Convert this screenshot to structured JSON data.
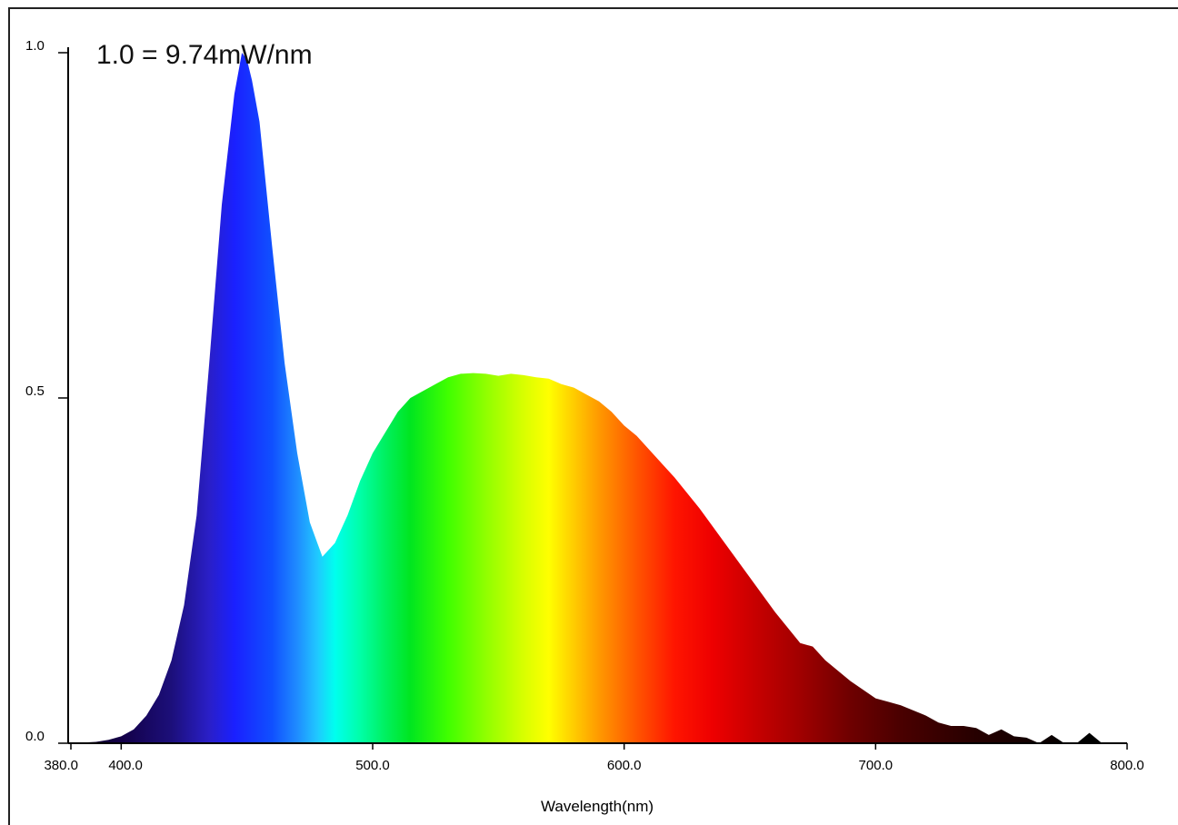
{
  "chart_data": {
    "type": "area",
    "annotation": "1.0 = 9.74mW/nm",
    "xlabel": "Wavelength(nm)",
    "ylabel": "",
    "xlim": [
      380.0,
      800.0
    ],
    "ylim": [
      0.0,
      1.0
    ],
    "x_ticks": [
      {
        "value": 380.0,
        "label": "380.0"
      },
      {
        "value": 400.0,
        "label": "400.0"
      },
      {
        "value": 500.0,
        "label": "500.0"
      },
      {
        "value": 600.0,
        "label": "600.0"
      },
      {
        "value": 700.0,
        "label": "700.0"
      },
      {
        "value": 800.0,
        "label": "800.0"
      }
    ],
    "y_ticks": [
      {
        "value": 0.0,
        "label": "0.0"
      },
      {
        "value": 0.5,
        "label": "0.5"
      },
      {
        "value": 1.0,
        "label": "1.0"
      }
    ],
    "grid": false,
    "fill": "visible-spectrum colors",
    "x": [
      380,
      390,
      395,
      400,
      405,
      410,
      415,
      420,
      425,
      430,
      435,
      440,
      445,
      448,
      450,
      452,
      455,
      460,
      465,
      470,
      475,
      478,
      480,
      485,
      490,
      495,
      500,
      505,
      510,
      515,
      520,
      525,
      530,
      535,
      540,
      545,
      550,
      555,
      560,
      565,
      570,
      575,
      580,
      585,
      590,
      595,
      600,
      605,
      610,
      615,
      620,
      630,
      640,
      650,
      660,
      670,
      675,
      680,
      690,
      700,
      705,
      710,
      720,
      725,
      730,
      735,
      740,
      745,
      750,
      755,
      760,
      765,
      770,
      775,
      780,
      785,
      790
    ],
    "y": [
      0.0,
      0.002,
      0.005,
      0.01,
      0.02,
      0.04,
      0.07,
      0.12,
      0.2,
      0.33,
      0.55,
      0.78,
      0.94,
      1.0,
      0.99,
      0.96,
      0.9,
      0.72,
      0.55,
      0.42,
      0.32,
      0.29,
      0.27,
      0.29,
      0.33,
      0.38,
      0.42,
      0.45,
      0.48,
      0.5,
      0.51,
      0.52,
      0.53,
      0.535,
      0.536,
      0.535,
      0.532,
      0.535,
      0.533,
      0.53,
      0.528,
      0.52,
      0.515,
      0.505,
      0.495,
      0.48,
      0.46,
      0.445,
      0.425,
      0.405,
      0.385,
      0.34,
      0.29,
      0.24,
      0.19,
      0.145,
      0.14,
      0.12,
      0.09,
      0.065,
      0.06,
      0.055,
      0.04,
      0.03,
      0.025,
      0.025,
      0.022,
      0.012,
      0.02,
      0.01,
      0.008,
      0.0,
      0.012,
      0.0,
      0.0,
      0.015,
      0.0
    ]
  }
}
